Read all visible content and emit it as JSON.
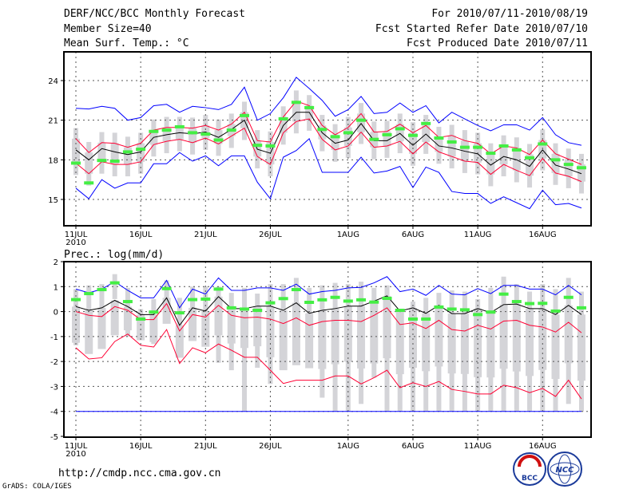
{
  "header": {
    "title": "DERF/NCC/BCC Monthly Forecast",
    "member": "Member Size=40",
    "variable": "Mean Surf. Temp.: °C",
    "period": "For 2010/07/11-2010/08/19",
    "start": "Fcst Started Refer Date 2010/07/10",
    "produced": "Fcst Produced Date 2010/07/11"
  },
  "footer": {
    "url": "http://cmdp.ncc.cma.gov.cn",
    "credit": "GrADS: COLA/IGES",
    "logo_left": "BCC",
    "logo_right": "NCC"
  },
  "colors": {
    "mean": "#000000",
    "spread": "#ff0033",
    "extreme": "#0000ff",
    "obs": "#44ee44",
    "box": "#d4d4d8"
  },
  "chart_data": [
    {
      "type": "line",
      "title": "Mean Surf. Temp.: °C",
      "ylim": [
        13,
        26
      ],
      "yticks": [
        "15",
        "18",
        "21",
        "24"
      ],
      "ytick_values": [
        15,
        18,
        21,
        24
      ],
      "xticks": [
        "11JUL",
        "16JUL",
        "21JUL",
        "26JUL",
        "1AUG",
        "6AUG",
        "11AUG",
        "16AUG"
      ],
      "xtick_days": [
        0,
        5,
        10,
        15,
        21,
        26,
        31,
        36
      ],
      "xyear": "2010",
      "grid": true,
      "series": [
        {
          "name": "max",
          "color": "extreme",
          "values": [
            21.9,
            21.85,
            22.05,
            21.9,
            21.0,
            21.2,
            22.1,
            22.2,
            21.6,
            22.05,
            21.95,
            21.8,
            22.2,
            23.5,
            21.0,
            21.5,
            22.7,
            24.25,
            23.4,
            22.5,
            21.3,
            21.8,
            22.8,
            21.5,
            21.6,
            22.3,
            21.6,
            22.1,
            20.8,
            21.6,
            21.1,
            20.6,
            20.2,
            20.65,
            20.65,
            20.25,
            21.2,
            19.9,
            19.3,
            19.1
          ]
        },
        {
          "name": "upper",
          "color": "spread",
          "values": [
            19.6,
            18.55,
            19.3,
            19.25,
            18.95,
            19.25,
            20.25,
            20.45,
            20.45,
            20.4,
            20.6,
            20.25,
            20.7,
            21.6,
            19.45,
            19.35,
            21.25,
            22.45,
            22.1,
            20.6,
            19.9,
            20.45,
            21.5,
            20.1,
            20.15,
            20.7,
            20.05,
            20.6,
            19.7,
            19.85,
            19.45,
            19.25,
            18.45,
            19.05,
            18.9,
            18.4,
            19.5,
            18.45,
            18.05,
            17.65
          ]
        },
        {
          "name": "mean",
          "color": "mean",
          "values": [
            18.75,
            18.0,
            18.85,
            18.6,
            18.4,
            18.6,
            19.7,
            19.9,
            20.05,
            19.97,
            20.1,
            19.7,
            20.3,
            21.0,
            18.8,
            18.5,
            20.6,
            21.6,
            21.6,
            20.05,
            19.25,
            19.5,
            20.75,
            19.45,
            19.45,
            20.0,
            19.1,
            19.95,
            19.05,
            18.9,
            18.65,
            18.45,
            17.6,
            18.25,
            18.0,
            17.5,
            18.75,
            17.6,
            17.3,
            16.95
          ]
        },
        {
          "name": "lower",
          "color": "spread",
          "values": [
            17.75,
            16.95,
            17.85,
            17.65,
            17.65,
            17.85,
            19.15,
            19.4,
            19.55,
            19.3,
            19.65,
            19.2,
            19.8,
            20.4,
            18.25,
            17.65,
            20.05,
            20.9,
            21.1,
            19.55,
            18.75,
            19.05,
            20.1,
            18.95,
            19.05,
            19.4,
            18.45,
            19.35,
            18.6,
            18.25,
            17.9,
            17.8,
            16.9,
            17.65,
            17.2,
            16.8,
            18.1,
            17.0,
            16.75,
            16.35
          ]
        },
        {
          "name": "min",
          "color": "extreme",
          "values": [
            15.85,
            15.05,
            16.5,
            15.85,
            16.25,
            16.25,
            17.7,
            17.7,
            18.55,
            17.9,
            18.3,
            17.55,
            18.3,
            18.3,
            16.3,
            15.05,
            18.2,
            18.7,
            19.6,
            17.05,
            17.05,
            17.05,
            18.2,
            17.0,
            17.15,
            17.5,
            15.9,
            17.45,
            17.05,
            15.6,
            15.45,
            15.45,
            14.7,
            15.2,
            14.75,
            14.3,
            15.7,
            14.6,
            14.7,
            14.35
          ]
        }
      ],
      "obs": [
        17.75,
        16.25,
        17.95,
        17.9,
        18.6,
        18.8,
        20.15,
        20.25,
        20.5,
        20.05,
        19.95,
        19.5,
        20.25,
        21.35,
        19.1,
        19.05,
        21.1,
        22.35,
        21.95,
        20.3,
        19.75,
        20.05,
        21.0,
        19.55,
        19.9,
        20.35,
        19.85,
        20.75,
        19.65,
        19.35,
        18.95,
        18.95,
        18.5,
        19.05,
        18.75,
        18.15,
        19.2,
        18.0,
        17.65,
        17.4
      ],
      "box_hi": [
        20.4,
        19.35,
        20.1,
        20.05,
        19.75,
        20.05,
        21.05,
        21.25,
        21.25,
        21.2,
        21.4,
        21.05,
        21.5,
        22.4,
        20.25,
        20.15,
        22.05,
        23.25,
        22.9,
        21.4,
        20.7,
        21.25,
        22.3,
        20.9,
        20.95,
        21.5,
        20.85,
        21.4,
        20.5,
        20.65,
        20.25,
        20.05,
        19.25,
        19.85,
        19.7,
        19.2,
        20.3,
        19.25,
        18.85,
        18.45
      ],
      "box_lo": [
        16.85,
        16.05,
        16.95,
        16.75,
        16.75,
        16.95,
        18.25,
        18.5,
        18.65,
        18.4,
        18.75,
        18.3,
        18.9,
        19.5,
        17.35,
        16.75,
        19.15,
        20.0,
        20.2,
        18.65,
        17.85,
        18.15,
        19.2,
        18.05,
        18.15,
        18.5,
        17.55,
        18.45,
        17.7,
        17.35,
        17.0,
        16.9,
        16.0,
        16.75,
        16.3,
        15.9,
        17.2,
        16.1,
        15.85,
        15.45
      ]
    },
    {
      "type": "line",
      "title": "Prec.: log(mm/d)",
      "ylim": [
        -5,
        2
      ],
      "yticks": [
        "-5",
        "-4",
        "-3",
        "-2",
        "-1",
        "0",
        "1",
        "2"
      ],
      "ytick_values": [
        -5,
        -4,
        -3,
        -2,
        -1,
        0,
        1,
        2
      ],
      "xticks": [
        "11JUL",
        "16JUL",
        "21JUL",
        "26JUL",
        "1AUG",
        "6AUG",
        "11AUG",
        "16AUG"
      ],
      "xtick_days": [
        0,
        5,
        10,
        15,
        21,
        26,
        31,
        36
      ],
      "xyear": "2010",
      "grid": true,
      "series": [
        {
          "name": "max",
          "color": "extreme",
          "values": [
            0.9,
            0.75,
            0.9,
            1.2,
            0.85,
            0.55,
            0.55,
            1.25,
            0.15,
            0.9,
            0.7,
            1.35,
            0.85,
            0.85,
            0.95,
            0.95,
            0.85,
            1.1,
            0.7,
            0.8,
            0.85,
            0.95,
            0.97,
            1.15,
            1.4,
            0.8,
            0.9,
            0.65,
            1.05,
            0.7,
            0.67,
            0.92,
            0.72,
            1.05,
            1.05,
            0.9,
            0.9,
            0.67,
            1.05,
            0.67
          ]
        },
        {
          "name": "upper",
          "color": "spread",
          "values": [
            0.0,
            -0.15,
            -0.2,
            0.2,
            0.05,
            -0.32,
            -0.32,
            0.32,
            -0.78,
            -0.12,
            -0.22,
            0.25,
            -0.15,
            -0.25,
            -0.22,
            -0.3,
            -0.48,
            -0.25,
            -0.55,
            -0.4,
            -0.35,
            -0.35,
            -0.4,
            -0.15,
            0.15,
            -0.52,
            -0.45,
            -0.68,
            -0.35,
            -0.72,
            -0.78,
            -0.55,
            -0.7,
            -0.38,
            -0.35,
            -0.55,
            -0.62,
            -0.82,
            -0.43,
            -0.85
          ]
        },
        {
          "name": "mean",
          "color": "mean",
          "values": [
            0.2,
            0.05,
            0.15,
            0.45,
            0.2,
            -0.12,
            -0.12,
            0.55,
            -0.55,
            0.15,
            0.02,
            0.6,
            0.12,
            0.12,
            0.22,
            0.22,
            0.05,
            0.35,
            -0.07,
            0.05,
            0.12,
            0.22,
            0.22,
            0.42,
            0.63,
            0.02,
            0.15,
            -0.07,
            0.25,
            -0.08,
            -0.08,
            0.12,
            -0.04,
            0.28,
            0.3,
            0.12,
            0.12,
            -0.12,
            0.25,
            -0.12
          ]
        },
        {
          "name": "lower",
          "color": "spread",
          "values": [
            -1.45,
            -1.9,
            -1.85,
            -1.2,
            -0.9,
            -1.35,
            -1.42,
            -0.72,
            -2.08,
            -1.45,
            -1.65,
            -1.3,
            -1.55,
            -1.83,
            -1.83,
            -2.35,
            -2.88,
            -2.75,
            -2.75,
            -2.75,
            -2.58,
            -2.58,
            -2.9,
            -2.65,
            -2.35,
            -3.05,
            -2.85,
            -3.0,
            -2.8,
            -3.12,
            -3.2,
            -3.3,
            -3.3,
            -2.95,
            -3.05,
            -3.25,
            -3.08,
            -3.4,
            -2.75,
            -3.5
          ]
        },
        {
          "name": "min",
          "color": "extreme",
          "values": [
            -4,
            -4,
            -4,
            -4,
            -4,
            -4,
            -4,
            -4,
            -4,
            -4,
            -4,
            -4,
            -4,
            -4,
            -4,
            -4,
            -4,
            -4,
            -4,
            -4,
            -4,
            -4,
            -4,
            -4,
            -4,
            -4,
            -4,
            -4,
            -4,
            -4,
            -4,
            -4,
            -4,
            -4,
            -4,
            -4,
            -4,
            -4,
            -4,
            -4
          ]
        }
      ],
      "obs": [
        0.48,
        0.72,
        0.88,
        1.15,
        0.4,
        -0.3,
        -0.02,
        0.92,
        -0.05,
        0.48,
        0.5,
        0.9,
        0.15,
        0.1,
        0.05,
        0.35,
        0.52,
        0.88,
        0.37,
        0.47,
        0.57,
        0.42,
        0.47,
        0.38,
        0.53,
        0.05,
        -0.3,
        -0.3,
        0.18,
        0.1,
        0.07,
        -0.12,
        -0.02,
        0.7,
        0.4,
        0.32,
        0.33,
        0.02,
        0.57,
        0.15
      ],
      "box_hi": [
        0.9,
        1.05,
        1.1,
        1.5,
        0.95,
        0.1,
        0.5,
        1.25,
        0.55,
        1.0,
        1.0,
        1.0,
        0.75,
        0.95,
        0.72,
        1.1,
        1.1,
        1.35,
        0.95,
        1.05,
        1.15,
        1.1,
        1.2,
        0.95,
        1.05,
        0.05,
        0.4,
        0.55,
        0.75,
        0.85,
        0.8,
        0.5,
        0.95,
        1.4,
        1.1,
        0.8,
        1.1,
        0.9,
        1.35,
        0.8
      ],
      "box_lo": [
        -1.35,
        -0.1,
        -0.05,
        0.5,
        -1.0,
        -1.05,
        -1.3,
        -0.4,
        -1.05,
        -0.95,
        -1.0,
        -2.05,
        -2.35,
        -4,
        -2.25,
        -2.9,
        -1.7,
        -1.8,
        -1.7,
        -3.45,
        -4,
        -4,
        -3.7,
        -2.65,
        -4,
        -4,
        -4,
        -4,
        -4,
        -4,
        -4,
        -4,
        -4,
        -4,
        -4,
        -4,
        -4,
        -4,
        -3.7,
        -4
      ]
    }
  ]
}
